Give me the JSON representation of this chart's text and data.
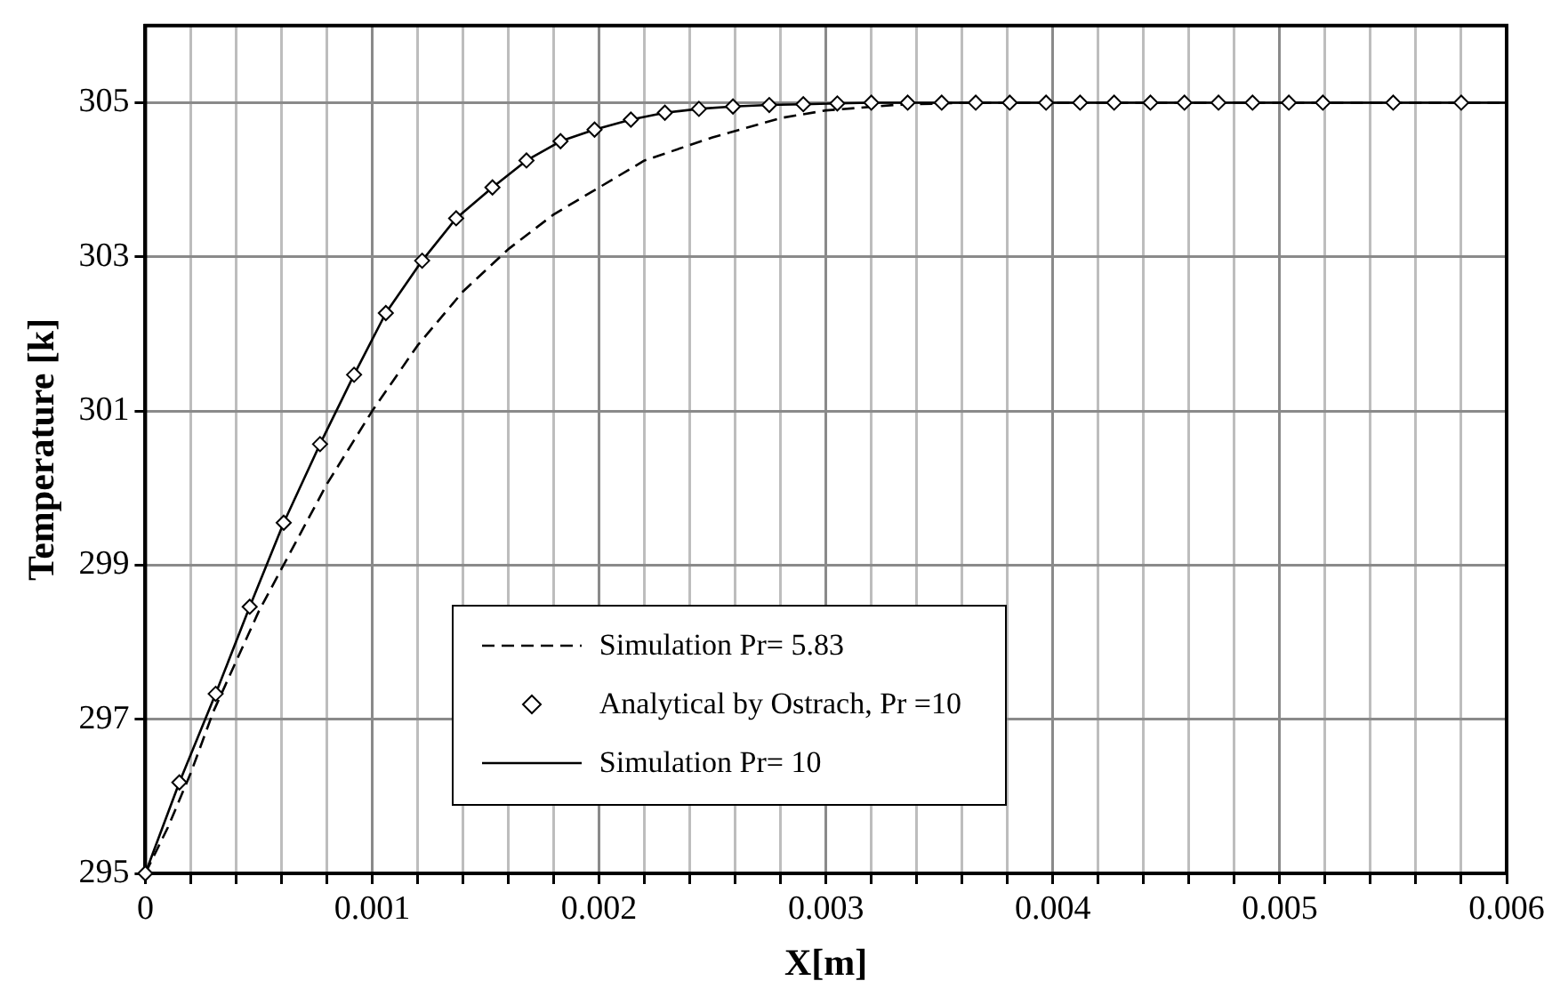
{
  "chart_data": {
    "type": "line",
    "xlabel": "X[m]",
    "ylabel": "Temperature [k]",
    "xlim": [
      0,
      0.006
    ],
    "ylim": [
      295,
      306
    ],
    "xticks": [
      0,
      {
        "value": 0.0002,
        "label": null
      },
      {
        "value": 0.0004,
        "label": null
      },
      {
        "value": 0.0006,
        "label": null
      },
      {
        "value": 0.0008,
        "label": null
      },
      0.001,
      {
        "value": 0.0012,
        "label": null
      },
      {
        "value": 0.0014,
        "label": null
      },
      {
        "value": 0.0016,
        "label": null
      },
      {
        "value": 0.0018,
        "label": null
      },
      0.002,
      {
        "value": 0.0022,
        "label": null
      },
      {
        "value": 0.0024,
        "label": null
      },
      {
        "value": 0.0026,
        "label": null
      },
      {
        "value": 0.0028,
        "label": null
      },
      0.003,
      {
        "value": 0.0032,
        "label": null
      },
      {
        "value": 0.0034,
        "label": null
      },
      {
        "value": 0.0036,
        "label": null
      },
      {
        "value": 0.0038,
        "label": null
      },
      0.004,
      {
        "value": 0.0042,
        "label": null
      },
      {
        "value": 0.0044,
        "label": null
      },
      {
        "value": 0.0046,
        "label": null
      },
      {
        "value": 0.0048,
        "label": null
      },
      0.005,
      {
        "value": 0.0052,
        "label": null
      },
      {
        "value": 0.0054,
        "label": null
      },
      {
        "value": 0.0056,
        "label": null
      },
      {
        "value": 0.0058,
        "label": null
      },
      0.006
    ],
    "yticks": [
      295,
      297,
      299,
      301,
      303,
      305
    ],
    "grid": true,
    "legend": "bottom",
    "series": [
      {
        "name": "Simulation Pr= 5.83",
        "type": "line",
        "color": "#000000",
        "line_style": "dashed",
        "marker": "none",
        "x": [
          0,
          0.0001,
          0.0002,
          0.0003,
          0.0004,
          0.0005,
          0.0006,
          0.0008,
          0.001,
          0.0012,
          0.0014,
          0.0016,
          0.0018,
          0.002,
          0.0022,
          0.0025,
          0.0028,
          0.003,
          0.0033,
          0.0036,
          0.006
        ],
        "values": [
          295,
          295.6,
          296.3,
          297.1,
          297.75,
          298.4,
          298.95,
          300.05,
          301.0,
          301.85,
          302.55,
          303.1,
          303.55,
          303.9,
          304.25,
          304.55,
          304.8,
          304.9,
          304.97,
          305,
          305
        ]
      },
      {
        "name": "Analytical by Ostrach, Pr =10",
        "type": "scatter",
        "color": "#000000",
        "marker": "diamond",
        "x": [
          0,
          0.00015,
          0.00031,
          0.00046,
          0.00061,
          0.00077,
          0.00092,
          0.00106,
          0.00122,
          0.00137,
          0.00153,
          0.00168,
          0.00183,
          0.00198,
          0.00214,
          0.00229,
          0.00244,
          0.00259,
          0.00275,
          0.0029,
          0.00305,
          0.0032,
          0.00336,
          0.00351,
          0.00366,
          0.00381,
          0.00397,
          0.00412,
          0.00427,
          0.00443,
          0.00458,
          0.00473,
          0.00488,
          0.00504,
          0.00519,
          0.0055,
          0.0058
        ],
        "values": [
          295,
          296.18,
          297.33,
          298.46,
          299.55,
          300.57,
          301.47,
          302.27,
          302.95,
          303.5,
          303.9,
          304.25,
          304.5,
          304.65,
          304.78,
          304.87,
          304.92,
          304.95,
          304.97,
          304.98,
          304.99,
          305,
          305,
          305,
          305,
          305,
          305,
          305,
          305,
          305,
          305,
          305,
          305,
          305,
          305,
          305,
          305
        ]
      },
      {
        "name": "Simulation Pr= 10",
        "type": "line",
        "color": "#000000",
        "line_style": "solid",
        "marker": "none",
        "x": [
          0,
          0.00015,
          0.00031,
          0.00046,
          0.00061,
          0.00077,
          0.00092,
          0.00106,
          0.00122,
          0.00137,
          0.00153,
          0.00168,
          0.00183,
          0.00198,
          0.00214,
          0.00229,
          0.00244,
          0.00259,
          0.00275,
          0.0029,
          0.00305,
          0.0032,
          0.006
        ],
        "values": [
          295,
          296.18,
          297.33,
          298.46,
          299.55,
          300.57,
          301.47,
          302.27,
          302.95,
          303.5,
          303.9,
          304.25,
          304.5,
          304.65,
          304.78,
          304.87,
          304.92,
          304.95,
          304.97,
          304.98,
          304.99,
          305,
          305
        ]
      }
    ]
  }
}
